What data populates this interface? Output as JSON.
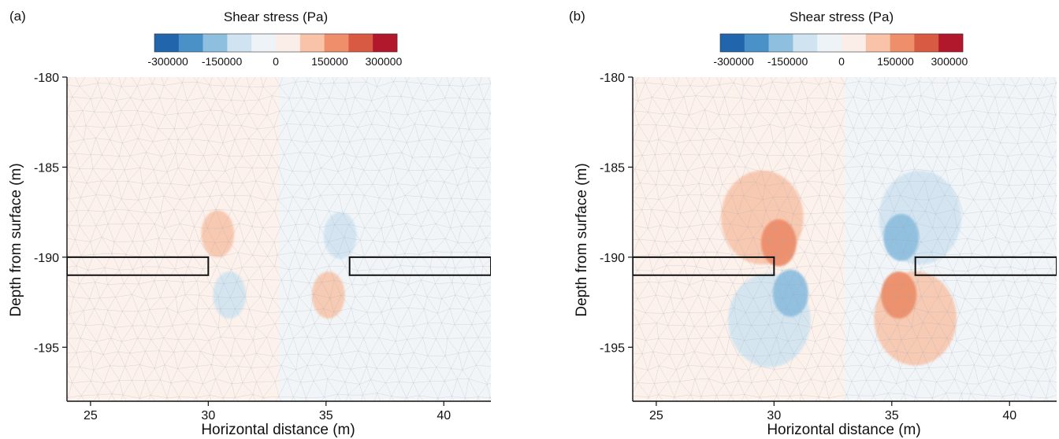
{
  "chart_data": [
    {
      "type": "heatmap",
      "panel_label": "(a)",
      "title": "",
      "colorbar": {
        "title": "Shear stress (Pa)",
        "ticks": [
          -300000,
          -150000,
          0,
          150000,
          300000
        ],
        "tick_labels": [
          "-300000",
          "-150000",
          "0",
          "150000",
          "300000"
        ],
        "range": [
          -337500,
          337500
        ],
        "levels": 9,
        "colors": [
          "#2166ac",
          "#4a91c8",
          "#8fbfdf",
          "#cfe3f0",
          "#eef3f7",
          "#fbeee8",
          "#f8c3a8",
          "#ee8e6a",
          "#d95a43",
          "#b2182b"
        ]
      },
      "xlabel": "Horizontal distance (m)",
      "ylabel": "Depth from surface (m)",
      "xlim": [
        24,
        42
      ],
      "ylim": [
        -198,
        -180
      ],
      "xticks": [
        25,
        30,
        35,
        40
      ],
      "yticks": [
        -180,
        -185,
        -190,
        -195
      ],
      "xtick_labels": [
        "25",
        "30",
        "35",
        "40"
      ],
      "ytick_labels": [
        "-180",
        "-185",
        "-190",
        "-195"
      ],
      "mesh": "triangular",
      "tunnels": [
        {
          "x": [
            24,
            30
          ],
          "y": [
            -191,
            -190
          ]
        },
        {
          "x": [
            36,
            42
          ],
          "y": [
            -191,
            -190
          ]
        }
      ],
      "background_regions": [
        {
          "x": [
            24,
            33
          ],
          "y": [
            -198,
            -180
          ],
          "stress": 20000
        },
        {
          "x": [
            33,
            42
          ],
          "y": [
            -198,
            -180
          ],
          "stress": -20000
        }
      ],
      "stress_blobs": [
        {
          "x": 30.4,
          "y": -188.7,
          "stress": 90000
        },
        {
          "x": 30.9,
          "y": -192.1,
          "stress": -90000
        },
        {
          "x": 35.6,
          "y": -188.8,
          "stress": -90000
        },
        {
          "x": 35.1,
          "y": -192.1,
          "stress": 90000
        }
      ]
    },
    {
      "type": "heatmap",
      "panel_label": "(b)",
      "title": "",
      "colorbar": {
        "title": "Shear stress (Pa)",
        "ticks": [
          -300000,
          -150000,
          0,
          150000,
          300000
        ],
        "tick_labels": [
          "-300000",
          "-150000",
          "0",
          "150000",
          "300000"
        ],
        "range": [
          -337500,
          337500
        ],
        "levels": 9,
        "colors": [
          "#2166ac",
          "#4a91c8",
          "#8fbfdf",
          "#cfe3f0",
          "#eef3f7",
          "#fbeee8",
          "#f8c3a8",
          "#ee8e6a",
          "#d95a43",
          "#b2182b"
        ]
      },
      "xlabel": "Horizontal distance (m)",
      "ylabel": "Depth from surface (m)",
      "xlim": [
        24,
        42
      ],
      "ylim": [
        -198,
        -180
      ],
      "xticks": [
        25,
        30,
        35,
        40
      ],
      "yticks": [
        -180,
        -185,
        -190,
        -195
      ],
      "xtick_labels": [
        "25",
        "30",
        "35",
        "40"
      ],
      "ytick_labels": [
        "-180",
        "-185",
        "-190",
        "-195"
      ],
      "mesh": "triangular",
      "tunnels": [
        {
          "x": [
            24,
            30
          ],
          "y": [
            -191,
            -190
          ]
        },
        {
          "x": [
            36,
            42
          ],
          "y": [
            -191,
            -190
          ]
        }
      ],
      "background_regions": [
        {
          "x": [
            24,
            33
          ],
          "y": [
            -198,
            -180
          ],
          "stress": 20000
        },
        {
          "x": [
            33,
            42
          ],
          "y": [
            -198,
            -180
          ],
          "stress": -20000
        }
      ],
      "stress_blobs": [
        {
          "x": 29.5,
          "y": -187.8,
          "stress": 120000
        },
        {
          "x": 30.2,
          "y": -189.2,
          "stress": 200000
        },
        {
          "x": 29.8,
          "y": -193.5,
          "stress": -120000
        },
        {
          "x": 30.7,
          "y": -192.0,
          "stress": -200000
        },
        {
          "x": 36.2,
          "y": -187.8,
          "stress": -120000
        },
        {
          "x": 35.4,
          "y": -188.9,
          "stress": -200000
        },
        {
          "x": 36.0,
          "y": -193.4,
          "stress": 120000
        },
        {
          "x": 35.3,
          "y": -192.1,
          "stress": 200000
        }
      ]
    }
  ]
}
